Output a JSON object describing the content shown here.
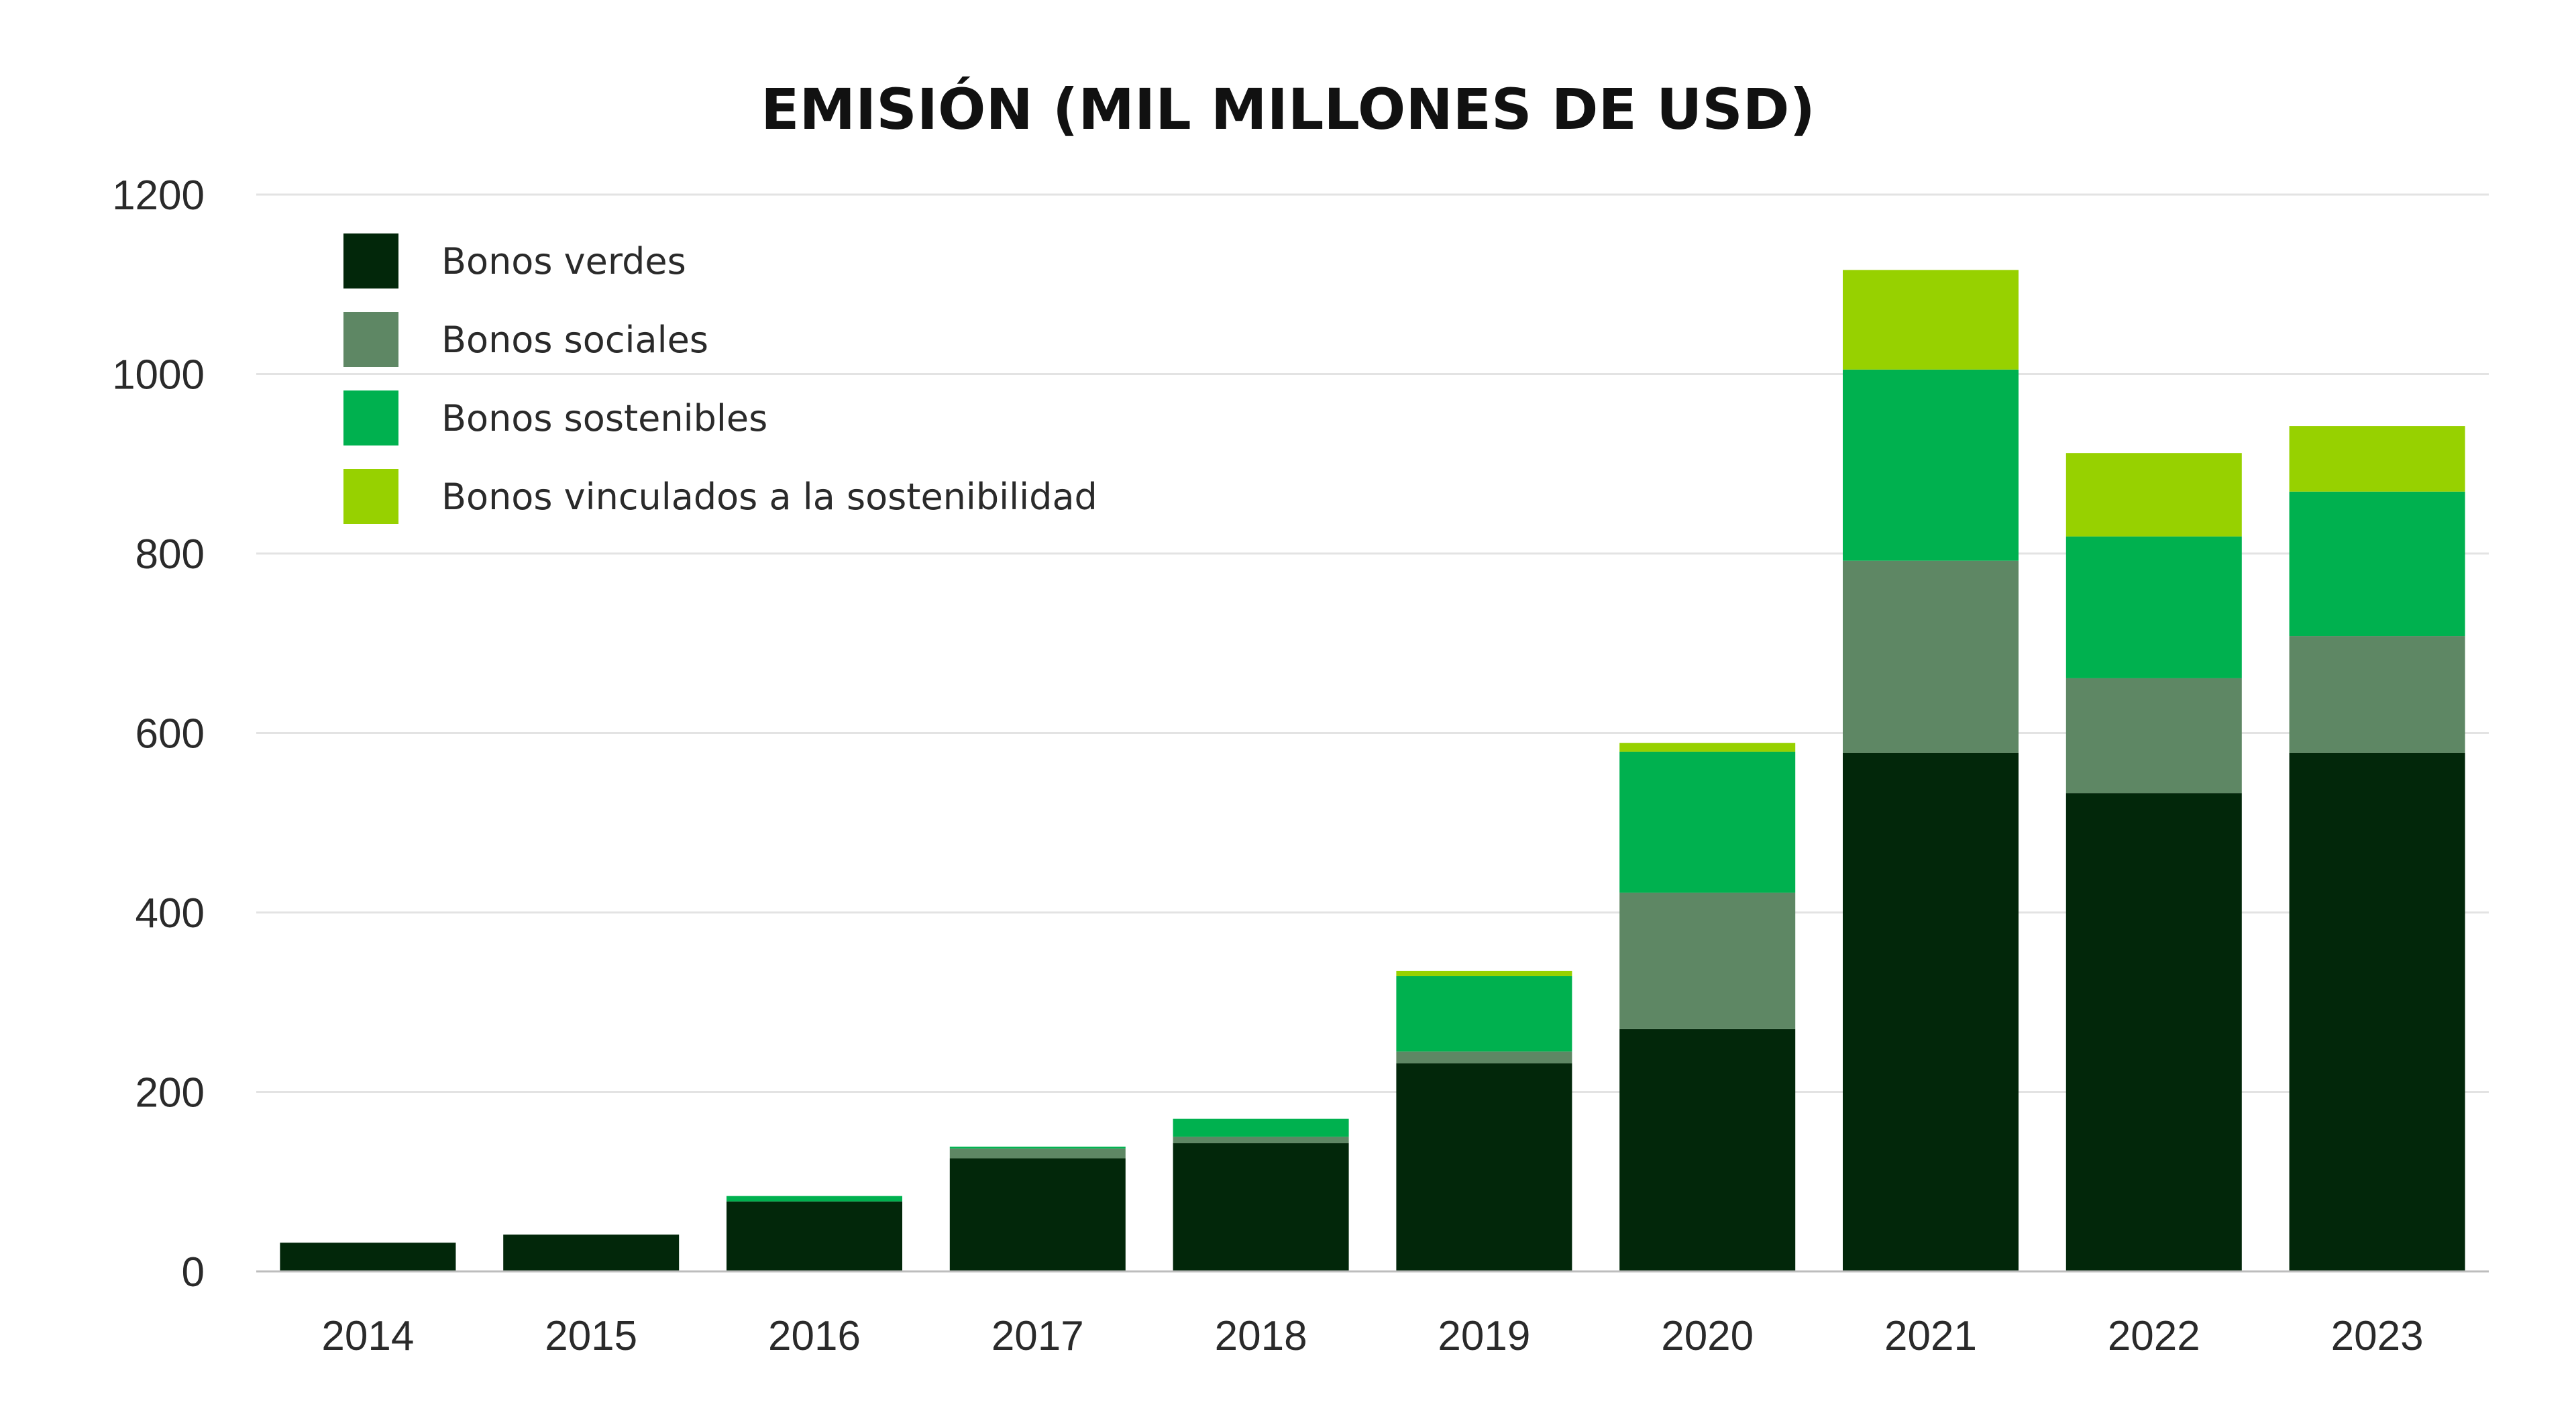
{
  "chart_data": {
    "type": "bar",
    "stacked": true,
    "title": "EMISIÓN (MIL MILLONES DE USD)",
    "xlabel": "",
    "ylabel": "",
    "categories": [
      "2014",
      "2015",
      "2016",
      "2017",
      "2018",
      "2019",
      "2020",
      "2021",
      "2022",
      "2023"
    ],
    "ylim": [
      0,
      1200
    ],
    "yticks": [
      0,
      200,
      400,
      600,
      800,
      1000,
      1200
    ],
    "grid": true,
    "legend_position": "top-left",
    "series": [
      {
        "name": "Bonos verdes",
        "color": "#02270a",
        "values": [
          32,
          41,
          78,
          126,
          143,
          232,
          270,
          578,
          533,
          578
        ]
      },
      {
        "name": "Bonos sociales",
        "color": "#5e8764",
        "values": [
          0,
          0,
          0,
          11,
          7,
          13,
          152,
          214,
          128,
          130
        ]
      },
      {
        "name": "Bonos sostenibles",
        "color": "#00b14f",
        "values": [
          0,
          0,
          6,
          2,
          20,
          84,
          157,
          213,
          158,
          161
        ]
      },
      {
        "name": "Bonos vinculados a la sostenibilidad",
        "color": "#97d100",
        "values": [
          0,
          0,
          0,
          0,
          0,
          6,
          10,
          111,
          93,
          73
        ]
      }
    ]
  }
}
